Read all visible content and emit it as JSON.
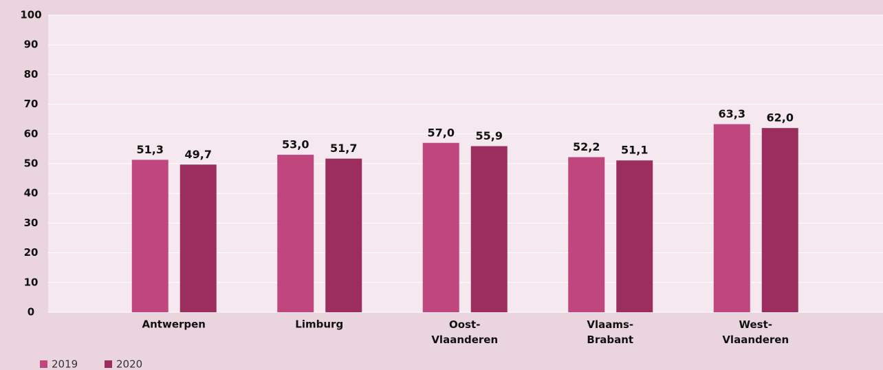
{
  "chart_data": {
    "type": "bar",
    "categories": [
      "Antwerpen",
      "Limburg",
      "Oost-Vlaanderen",
      "Vlaams-Brabant",
      "West-Vlaanderen"
    ],
    "series": [
      {
        "name": "2019",
        "color": "#c0477d",
        "values": [
          51.3,
          53.0,
          57.0,
          52.2,
          63.3
        ],
        "value_labels": [
          "51,3",
          "53,0",
          "57,0",
          "52,2",
          "63,3"
        ]
      },
      {
        "name": "2020",
        "color": "#9b2e5e",
        "values": [
          49.7,
          51.7,
          55.9,
          51.1,
          62.0
        ],
        "value_labels": [
          "49,7",
          "51,7",
          "55,9",
          "51,1",
          "62,0"
        ]
      }
    ],
    "ylim": [
      0,
      100
    ],
    "yticks": [
      0,
      10,
      20,
      30,
      40,
      50,
      60,
      70,
      80,
      90,
      100
    ],
    "grid": true,
    "legend": "bottom-left"
  }
}
